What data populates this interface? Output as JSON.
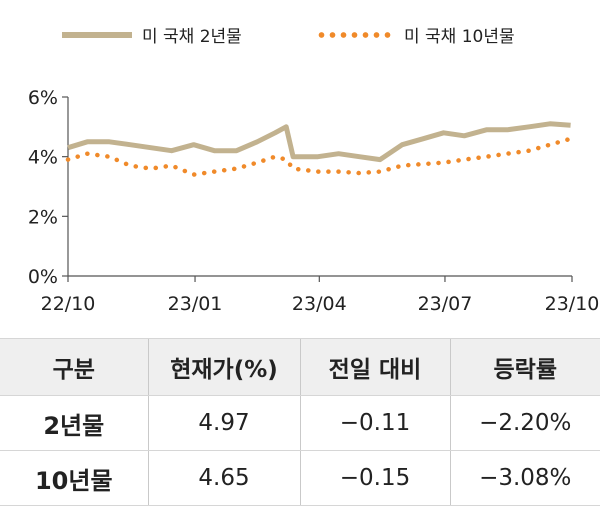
{
  "chart_data": {
    "type": "line",
    "title": "",
    "xlabel": "",
    "ylabel": "",
    "ylim": [
      0,
      6
    ],
    "yticks": [
      "0%",
      "2%",
      "4%",
      "6%"
    ],
    "xtick_labels": [
      "22/10",
      "23/01",
      "23/04",
      "23/07",
      "23/10"
    ],
    "legend_position": "top",
    "grid": false,
    "x": [
      "22/10/01",
      "22/10/15",
      "22/10/31",
      "22/11/15",
      "22/11/30",
      "22/12/15",
      "22/12/31",
      "23/01/15",
      "23/01/31",
      "23/02/15",
      "23/02/28",
      "23/03/08",
      "23/03/13",
      "23/03/31",
      "23/04/15",
      "23/04/30",
      "23/05/15",
      "23/05/31",
      "23/06/15",
      "23/06/30",
      "23/07/15",
      "23/07/31",
      "23/08/15",
      "23/08/31",
      "23/09/15",
      "23/09/30"
    ],
    "series": [
      {
        "name": "미 국채 2년물",
        "color": "#c2b28f",
        "style": "solid",
        "values": [
          4.3,
          4.5,
          4.5,
          4.4,
          4.3,
          4.2,
          4.4,
          4.2,
          4.2,
          4.5,
          4.8,
          5.0,
          4.0,
          4.0,
          4.1,
          4.0,
          3.9,
          4.4,
          4.6,
          4.8,
          4.7,
          4.9,
          4.9,
          5.0,
          5.1,
          5.05
        ]
      },
      {
        "name": "미 국채 10년물",
        "color": "#f08a2a",
        "style": "dotted",
        "values": [
          3.9,
          4.1,
          4.0,
          3.7,
          3.6,
          3.7,
          3.4,
          3.5,
          3.6,
          3.8,
          4.0,
          3.9,
          3.6,
          3.5,
          3.5,
          3.45,
          3.5,
          3.7,
          3.75,
          3.8,
          3.9,
          4.0,
          4.1,
          4.2,
          4.4,
          4.6
        ]
      }
    ]
  },
  "table": {
    "headers": [
      "구분",
      "현재가(%)",
      "전일 대비",
      "등락률"
    ],
    "rows": [
      [
        "2년물",
        "4.97",
        "−0.11",
        "−2.20%"
      ],
      [
        "10년물",
        "4.65",
        "−0.15",
        "−3.08%"
      ]
    ]
  }
}
